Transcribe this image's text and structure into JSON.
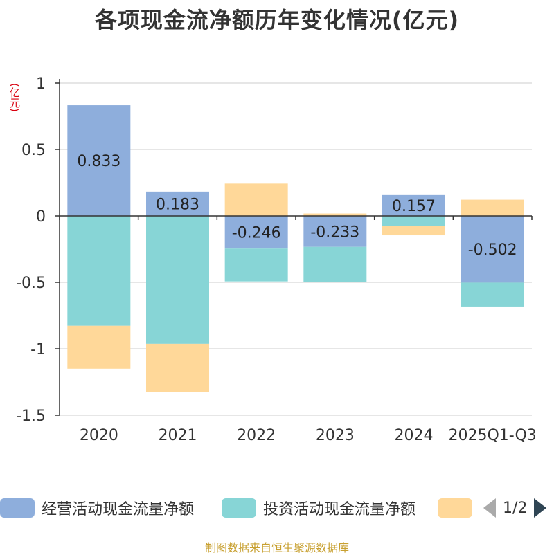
{
  "title": "各项现金流净额历年变化情况(亿元)",
  "y_unit": "(亿元)",
  "source": "制图数据来自恒生聚源数据库",
  "pager": {
    "text": "1/2",
    "prev_icon": "triangle-left-icon",
    "next_icon": "triangle-right-icon"
  },
  "legend": [
    {
      "label": "经营活动现金流量净额",
      "color": "#8eaedc"
    },
    {
      "label": "投资活动现金流量净额",
      "color": "#87d5d6"
    },
    {
      "label": "",
      "color": "#ffd899"
    }
  ],
  "chart_data": {
    "type": "bar",
    "stacked": true,
    "title": "各项现金流净额历年变化情况(亿元)",
    "ylabel": "(亿元)",
    "ylim": [
      -1.5,
      1
    ],
    "yticks": [
      "1",
      "0.5",
      "0",
      "-0.5",
      "-1",
      "-1.5"
    ],
    "ytick_values": [
      1,
      0.5,
      0,
      -0.5,
      -1,
      -1.5
    ],
    "categories": [
      "2020",
      "2021",
      "2022",
      "2023",
      "2024",
      "2025Q1-Q3"
    ],
    "series": [
      {
        "name": "经营活动现金流量净额",
        "color": "#8eaedc",
        "values": [
          0.833,
          0.183,
          -0.246,
          -0.233,
          0.157,
          -0.502
        ],
        "labels": [
          "0.833",
          "0.183",
          "-0.246",
          "-0.233",
          "0.157",
          "-0.502"
        ]
      },
      {
        "name": "投资活动现金流量净额",
        "color": "#87d5d6",
        "values": [
          -0.827,
          -0.963,
          -0.247,
          -0.262,
          -0.073,
          -0.18
        ]
      },
      {
        "name": "",
        "color": "#ffd899",
        "values": [
          -0.323,
          -0.36,
          0.243,
          0.018,
          -0.073,
          0.122
        ]
      }
    ]
  }
}
